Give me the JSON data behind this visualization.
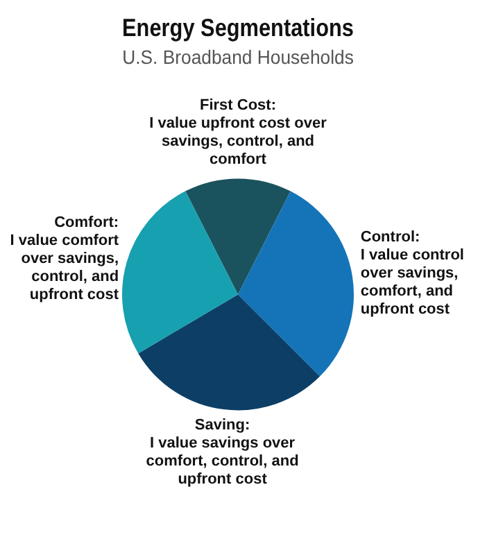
{
  "chart_data": {
    "type": "pie",
    "title": "Energy Segmentations",
    "subtitle": "U.S. Broadband Households",
    "categories": [
      "First Cost: I value upfront cost over savings, control, and comfort",
      "Control: I value control over savings, comfort, and upfront cost",
      "Saving: I value savings over comfort, control, and upfront cost",
      "Comfort: I value comfort over savings, control, and upfront cost"
    ],
    "values": [
      15,
      30,
      29,
      26
    ],
    "colors": [
      "#1a535e",
      "#1574b8",
      "#0d3f66",
      "#17a0b0"
    ],
    "legend": false
  }
}
